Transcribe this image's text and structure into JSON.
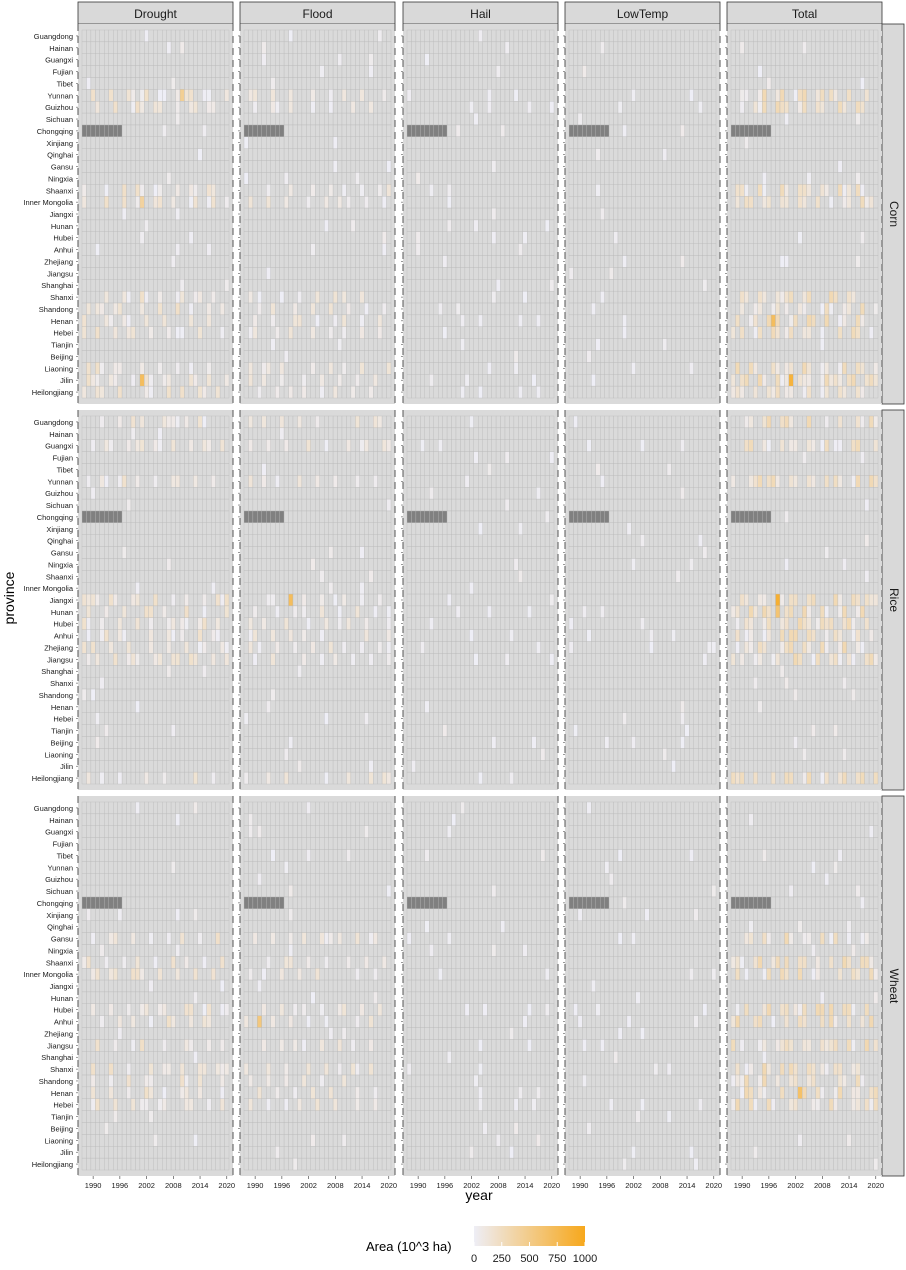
{
  "chart_data": {
    "type": "heatmap",
    "title": "",
    "xlabel": "year",
    "ylabel": "province",
    "facet_columns": [
      "Drought",
      "Flood",
      "Hail",
      "LowTemp",
      "Total"
    ],
    "facet_rows": [
      "Corn",
      "Rice",
      "Wheat"
    ],
    "years": [
      1988,
      1989,
      1990,
      1991,
      1992,
      1993,
      1994,
      1995,
      1996,
      1997,
      1998,
      1999,
      2000,
      2001,
      2002,
      2003,
      2004,
      2005,
      2006,
      2007,
      2008,
      2009,
      2010,
      2011,
      2012,
      2013,
      2014,
      2015,
      2016,
      2017,
      2018,
      2019,
      2020
    ],
    "x_ticks": [
      "1990",
      "1996",
      "2002",
      "2008",
      "2014",
      "2020"
    ],
    "provinces": [
      "Guangdong",
      "Hainan",
      "Guangxi",
      "Fujian",
      "Tibet",
      "Yunnan",
      "Guizhou",
      "Sichuan",
      "Chongqing",
      "Xinjiang",
      "Qinghai",
      "Gansu",
      "Ningxia",
      "Shaanxi",
      "Inner Mongolia",
      "Jiangxi",
      "Hunan",
      "Hubei",
      "Anhui",
      "Zhejiang",
      "Jiangsu",
      "Shanghai",
      "Shanxi",
      "Shandong",
      "Henan",
      "Hebei",
      "Tianjin",
      "Beijing",
      "Liaoning",
      "Jilin",
      "Heilongjiang"
    ],
    "missing_value_note": "Chongqing has no data for 1988-1996 in every panel",
    "notable_values": [
      {
        "crop": "Corn",
        "hazard": "Drought",
        "province": "Jilin",
        "year": 2001,
        "area": 700
      },
      {
        "crop": "Corn",
        "hazard": "Drought",
        "province": "Yunnan",
        "year": 2010,
        "area": 450
      },
      {
        "crop": "Corn",
        "hazard": "Drought",
        "province": "Inner Mongolia",
        "year": 2001,
        "area": 400
      },
      {
        "crop": "Corn",
        "hazard": "Total",
        "province": "Jilin",
        "year": 2001,
        "area": 850
      },
      {
        "crop": "Corn",
        "hazard": "Total",
        "province": "Henan",
        "year": 1997,
        "area": 700
      },
      {
        "crop": "Rice",
        "hazard": "Flood",
        "province": "Jiangxi",
        "year": 1998,
        "area": 700
      },
      {
        "crop": "Rice",
        "hazard": "Total",
        "province": "Jiangxi",
        "year": 1998,
        "area": 900
      },
      {
        "crop": "Rice",
        "hazard": "Total",
        "province": "Hunan",
        "year": 1998,
        "area": 600
      },
      {
        "crop": "Wheat",
        "hazard": "Flood",
        "province": "Anhui",
        "year": 1991,
        "area": 550
      },
      {
        "crop": "Wheat",
        "hazard": "Total",
        "province": "Henan",
        "year": 2003,
        "area": 650
      }
    ],
    "legend": {
      "title": "Area (10^3 ha)",
      "ticks": [
        "0",
        "250",
        "500",
        "750",
        "1000"
      ],
      "color_low": "#eeeef6",
      "color_high": "#f7a81c",
      "placement": "bottom"
    },
    "colors": {
      "panel_background": "#dadada",
      "grid": "#b8b8b8",
      "missing": "#808080",
      "strip_background": "#d9d9d9"
    }
  }
}
